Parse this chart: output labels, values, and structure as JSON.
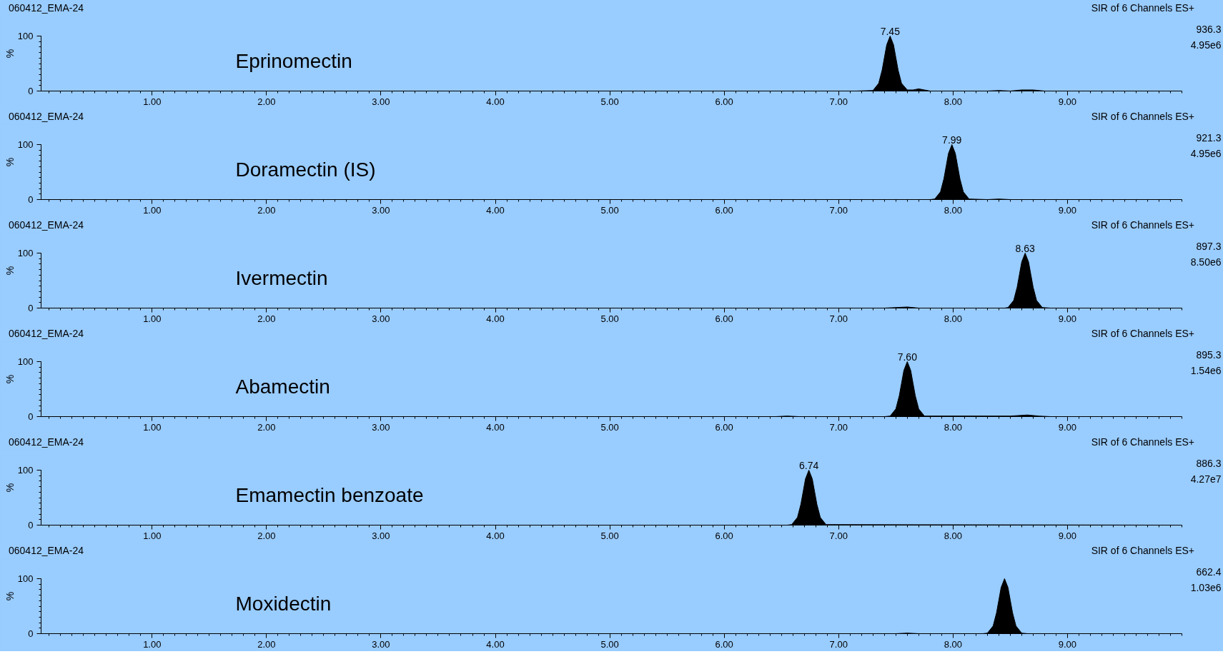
{
  "chart_data": [
    {
      "type": "area",
      "title": "060412_EMA-24",
      "subtitle": "SIR of 6 Channels ES+\n936.3\n4.95e6",
      "ylabel": "%",
      "color": "#000000",
      "grid": false,
      "x": [
        0.05,
        7.15,
        7.3,
        7.35,
        7.38,
        7.4,
        7.42,
        7.45,
        7.48,
        7.5,
        7.52,
        7.55,
        7.6,
        7.65,
        7.7,
        7.75,
        7.8,
        8.3,
        8.4,
        8.5,
        8.6,
        8.7,
        8.8,
        9.95
      ],
      "values": [
        0,
        0,
        1,
        14,
        38,
        61,
        84,
        100,
        84,
        61,
        38,
        14,
        2,
        2,
        4,
        2,
        0,
        0,
        1,
        0,
        2,
        2,
        0,
        0
      ],
      "xlim": [
        0.03,
        10.0
      ],
      "xticks": [
        {
          "value": 1,
          "label": "1.00"
        },
        {
          "value": 2,
          "label": "2.00"
        },
        {
          "value": 3,
          "label": "3.00"
        },
        {
          "value": 4,
          "label": "4.00"
        },
        {
          "value": 5,
          "label": "5.00"
        },
        {
          "value": 6,
          "label": "6.00"
        },
        {
          "value": 7,
          "label": "7.00"
        },
        {
          "value": 8,
          "label": "8.00"
        },
        {
          "value": 9,
          "label": "9.00"
        }
      ],
      "ylim": [
        0,
        100
      ],
      "yticks": [
        0,
        100
      ],
      "annotations": [
        "Eprinomectin",
        {
          "text": "7.45",
          "x": 7.45,
          "y": 100
        }
      ]
    },
    {
      "type": "area",
      "title": "060412_EMA-24",
      "subtitle": "SIR of 6 Channels ES+\n921.3\n4.95e6",
      "ylabel": "%",
      "color": "#000000",
      "grid": false,
      "x": [
        0.05,
        7.8,
        7.84,
        7.89,
        7.92,
        7.94,
        7.96,
        7.99,
        8.02,
        8.04,
        8.06,
        8.09,
        8.14,
        8.3,
        8.4,
        8.5,
        9.95
      ],
      "values": [
        0,
        0,
        1,
        14,
        38,
        61,
        84,
        100,
        84,
        61,
        38,
        14,
        1,
        0,
        1,
        0,
        0
      ],
      "xlim": [
        0.03,
        10.0
      ],
      "xticks": [
        {
          "value": 1,
          "label": "1.00"
        },
        {
          "value": 2,
          "label": "2.00"
        },
        {
          "value": 3,
          "label": "3.00"
        },
        {
          "value": 4,
          "label": "4.00"
        },
        {
          "value": 5,
          "label": "5.00"
        },
        {
          "value": 6,
          "label": "6.00"
        },
        {
          "value": 7,
          "label": "7.00"
        },
        {
          "value": 8,
          "label": "8.00"
        },
        {
          "value": 9,
          "label": "9.00"
        }
      ],
      "ylim": [
        0,
        100
      ],
      "yticks": [
        0,
        100
      ],
      "annotations": [
        "Doramectin (IS)",
        {
          "text": "7.99",
          "x": 7.99,
          "y": 100
        }
      ]
    },
    {
      "type": "area",
      "title": "060412_EMA-24",
      "subtitle": "SIR of 6 Channels ES+\n897.3\n8.50e6",
      "ylabel": "%",
      "color": "#000000",
      "grid": false,
      "x": [
        0.05,
        7.4,
        7.6,
        7.7,
        8.45,
        8.48,
        8.53,
        8.56,
        8.58,
        8.6,
        8.63,
        8.66,
        8.68,
        8.7,
        8.73,
        8.78,
        8.85,
        9.95
      ],
      "values": [
        0,
        0,
        2,
        0,
        0,
        1,
        14,
        38,
        61,
        84,
        100,
        84,
        61,
        38,
        14,
        1,
        0,
        0
      ],
      "xlim": [
        0.03,
        10.0
      ],
      "xticks": [
        {
          "value": 1,
          "label": "1.00"
        },
        {
          "value": 2,
          "label": "2.00"
        },
        {
          "value": 3,
          "label": "3.00"
        },
        {
          "value": 4,
          "label": "4.00"
        },
        {
          "value": 5,
          "label": "5.00"
        },
        {
          "value": 6,
          "label": "6.00"
        },
        {
          "value": 7,
          "label": "7.00"
        },
        {
          "value": 8,
          "label": "8.00"
        },
        {
          "value": 9,
          "label": "9.00"
        }
      ],
      "ylim": [
        0,
        100
      ],
      "yticks": [
        0,
        100
      ],
      "annotations": [
        "Ivermectin",
        {
          "text": "8.63",
          "x": 8.63,
          "y": 100
        }
      ]
    },
    {
      "type": "area",
      "title": "060412_EMA-24",
      "subtitle": "SIR of 6 Channels ES+\n895.3\n1.54e6",
      "ylabel": "%",
      "color": "#000000",
      "grid": false,
      "x": [
        0.05,
        6.45,
        6.55,
        6.65,
        7.4,
        7.45,
        7.5,
        7.53,
        7.55,
        7.57,
        7.6,
        7.63,
        7.65,
        7.67,
        7.7,
        7.75,
        8.2,
        8.3,
        8.5,
        8.65,
        8.75,
        8.85,
        9.95
      ],
      "values": [
        0,
        0,
        1,
        0,
        0,
        1,
        14,
        38,
        61,
        84,
        100,
        84,
        61,
        38,
        14,
        1,
        1,
        1,
        1,
        3,
        1,
        0,
        0
      ],
      "xlim": [
        0.03,
        10.0
      ],
      "xticks": [
        {
          "value": 1,
          "label": "1.00"
        },
        {
          "value": 2,
          "label": "2.00"
        },
        {
          "value": 3,
          "label": "3.00"
        },
        {
          "value": 4,
          "label": "4.00"
        },
        {
          "value": 5,
          "label": "5.00"
        },
        {
          "value": 6,
          "label": "6.00"
        },
        {
          "value": 7,
          "label": "7.00"
        },
        {
          "value": 8,
          "label": "8.00"
        },
        {
          "value": 9,
          "label": "9.00"
        }
      ],
      "ylim": [
        0,
        100
      ],
      "yticks": [
        0,
        100
      ],
      "annotations": [
        "Abamectin",
        {
          "text": "7.60",
          "x": 7.6,
          "y": 100
        }
      ]
    },
    {
      "type": "area",
      "title": "060412_EMA-24",
      "subtitle": "SIR of 6 Channels ES+\n886.3\n4.27e7",
      "ylabel": "%",
      "color": "#000000",
      "grid": false,
      "x": [
        0.05,
        6.55,
        6.59,
        6.64,
        6.67,
        6.69,
        6.71,
        6.74,
        6.77,
        6.79,
        6.81,
        6.84,
        6.89,
        9.95
      ],
      "values": [
        0,
        0,
        1,
        14,
        38,
        61,
        84,
        100,
        84,
        61,
        38,
        14,
        1,
        0
      ],
      "xlim": [
        0.03,
        10.0
      ],
      "xticks": [
        {
          "value": 1,
          "label": "1.00"
        },
        {
          "value": 2,
          "label": "2.00"
        },
        {
          "value": 3,
          "label": "3.00"
        },
        {
          "value": 4,
          "label": "4.00"
        },
        {
          "value": 5,
          "label": "5.00"
        },
        {
          "value": 6,
          "label": "6.00"
        },
        {
          "value": 7,
          "label": "7.00"
        },
        {
          "value": 8,
          "label": "8.00"
        },
        {
          "value": 9,
          "label": "9.00"
        }
      ],
      "ylim": [
        0,
        100
      ],
      "yticks": [
        0,
        100
      ],
      "annotations": [
        "Emamectin benzoate",
        {
          "text": "6.74",
          "x": 6.74,
          "y": 100
        }
      ]
    },
    {
      "type": "area",
      "title": "060412_EMA-24",
      "subtitle": "SIR of 6 Channels ES+\n662.4\n1.03e6",
      "ylabel": "%",
      "color": "#000000",
      "grid": false,
      "x": [
        0.05,
        7.5,
        7.6,
        7.7,
        8.26,
        8.3,
        8.35,
        8.38,
        8.4,
        8.42,
        8.45,
        8.48,
        8.5,
        8.52,
        8.55,
        8.6,
        8.65,
        9.95
      ],
      "values": [
        0,
        0,
        1,
        0,
        0,
        1,
        14,
        38,
        61,
        84,
        100,
        84,
        61,
        38,
        14,
        1,
        0,
        0
      ],
      "xlim": [
        0.03,
        10.0
      ],
      "xticks": [
        {
          "value": 1,
          "label": "1.00"
        },
        {
          "value": 2,
          "label": "2.00"
        },
        {
          "value": 3,
          "label": "3.00"
        },
        {
          "value": 4,
          "label": "4.00"
        },
        {
          "value": 5,
          "label": "5.00"
        },
        {
          "value": 6,
          "label": "6.00"
        },
        {
          "value": 7,
          "label": "7.00"
        },
        {
          "value": 8,
          "label": "8.00"
        },
        {
          "value": 9,
          "label": "9.00"
        }
      ],
      "ylim": [
        0,
        100
      ],
      "yticks": [
        0,
        100
      ],
      "annotations": [
        "Moxidectin"
      ]
    }
  ]
}
